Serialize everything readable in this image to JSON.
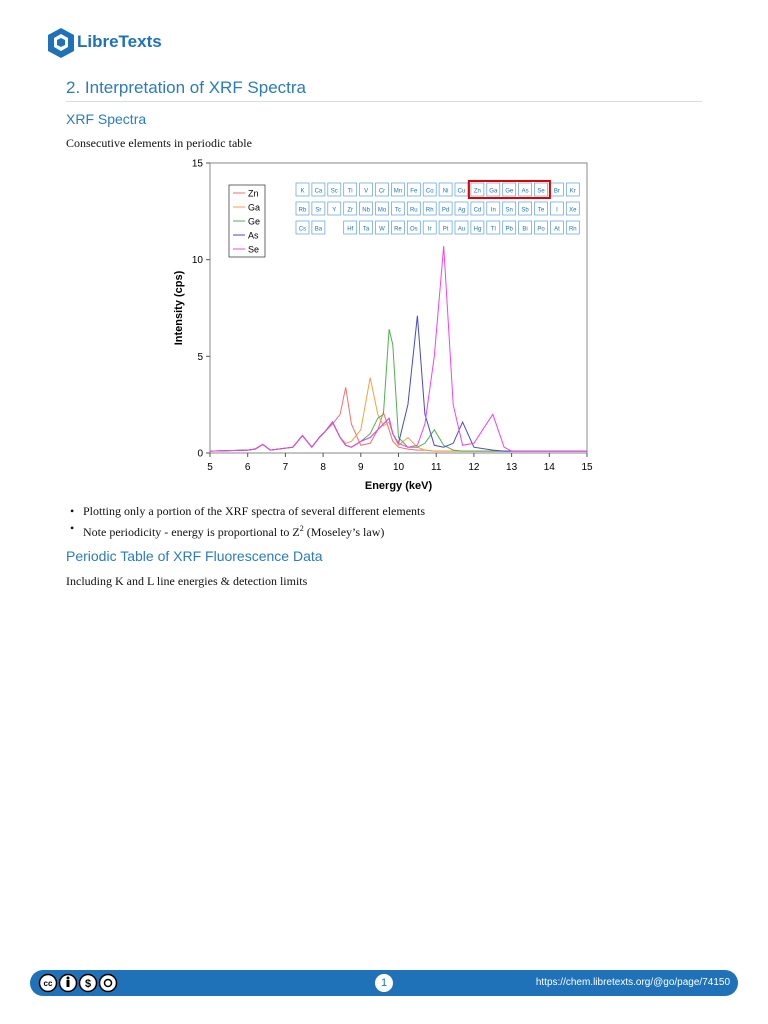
{
  "header": {
    "logo": "LibreTexts"
  },
  "title": "2. Interpretation of XRF Spectra",
  "section1": {
    "heading": "XRF Spectra",
    "text": "Consecutive elements in periodic table",
    "bullets": [
      {
        "text": "Plotting only a portion of the XRF spectra of several different elements"
      },
      {
        "text": "Note periodicity - energy is proportional to Z",
        "sup": "2",
        "tail": " (Moseley’s law)"
      }
    ]
  },
  "section2": {
    "heading": "Periodic Table of XRF Fluorescence Data",
    "text": "Including K and L line energies & detection limits"
  },
  "chart_data": {
    "type": "line",
    "x_label": "Energy (keV)",
    "y_label": "Intensity (cps)",
    "xlim": [
      5,
      15
    ],
    "ylim": [
      0,
      15
    ],
    "xticks": [
      5,
      6,
      7,
      8,
      9,
      10,
      11,
      12,
      13,
      14,
      15
    ],
    "yticks": [
      0,
      5,
      10,
      15
    ],
    "x": [
      5,
      6,
      6.2,
      6.4,
      6.6,
      7.2,
      7.45,
      7.7,
      7.9,
      8.05,
      8.25,
      8.45,
      8.6,
      8.75,
      9.0,
      9.25,
      9.45,
      9.6,
      9.75,
      9.85,
      10.0,
      10.25,
      10.5,
      10.7,
      10.95,
      11.2,
      11.45,
      11.7,
      12.0,
      12.5,
      12.8,
      13,
      14,
      15
    ],
    "series": [
      {
        "name": "Zn",
        "color": "#f07070",
        "values": [
          0.1,
          0.15,
          0.2,
          0.45,
          0.15,
          0.3,
          0.9,
          0.3,
          0.8,
          1.1,
          1.5,
          2.0,
          3.4,
          1.5,
          0.4,
          0.5,
          1.2,
          2.1,
          1.2,
          0.6,
          0.3,
          0.2,
          0.15,
          0.15,
          0.1,
          0.1,
          0.1,
          0.1,
          0.1,
          0.1,
          0.1,
          0.1,
          0.1,
          0.1
        ]
      },
      {
        "name": "Ga",
        "color": "#f5a040",
        "values": [
          0.1,
          0.15,
          0.2,
          0.45,
          0.15,
          0.3,
          0.9,
          0.3,
          0.8,
          1.1,
          1.6,
          0.8,
          0.5,
          0.6,
          1.2,
          3.9,
          2.0,
          1.4,
          1.6,
          1.0,
          0.4,
          0.8,
          0.3,
          0.15,
          0.1,
          0.1,
          0.1,
          0.1,
          0.1,
          0.1,
          0.1,
          0.1,
          0.1,
          0.1
        ]
      },
      {
        "name": "Ge",
        "color": "#50b050",
        "values": [
          0.1,
          0.15,
          0.2,
          0.45,
          0.15,
          0.3,
          0.9,
          0.3,
          0.8,
          1.1,
          1.6,
          0.8,
          0.4,
          0.3,
          0.6,
          1.0,
          1.8,
          2.0,
          6.4,
          5.6,
          0.8,
          0.3,
          0.3,
          0.5,
          1.2,
          0.4,
          0.15,
          0.1,
          0.1,
          0.1,
          0.1,
          0.1,
          0.1,
          0.1
        ]
      },
      {
        "name": "As",
        "color": "#4848c8",
        "values": [
          0.1,
          0.15,
          0.2,
          0.45,
          0.15,
          0.3,
          0.9,
          0.3,
          0.8,
          1.1,
          1.6,
          0.8,
          0.4,
          0.3,
          0.6,
          0.8,
          1.2,
          1.5,
          1.8,
          1.0,
          0.5,
          2.5,
          7.1,
          2.0,
          0.4,
          0.3,
          0.5,
          1.6,
          0.3,
          0.15,
          0.1,
          0.1,
          0.1,
          0.1
        ]
      },
      {
        "name": "Se",
        "color": "#ee44ee",
        "values": [
          0.1,
          0.15,
          0.2,
          0.45,
          0.15,
          0.3,
          0.9,
          0.3,
          0.8,
          1.1,
          1.6,
          0.8,
          0.4,
          0.3,
          0.6,
          0.8,
          1.2,
          1.5,
          1.8,
          1.0,
          0.5,
          0.3,
          0.4,
          1.5,
          5.0,
          10.7,
          2.5,
          0.4,
          0.5,
          2.0,
          0.3,
          0.1,
          0.1,
          0.1
        ]
      }
    ],
    "periodic_table": [
      [
        "K",
        "Ca",
        "Sc",
        "Ti",
        "V",
        "Cr",
        "Mn",
        "Fe",
        "Co",
        "Ni",
        "Cu",
        "Zn",
        "Ga",
        "Ge",
        "As",
        "Se",
        "Br",
        "Kr"
      ],
      [
        "Rb",
        "Sr",
        "Y",
        "Zr",
        "Nb",
        "Mo",
        "Tc",
        "Ru",
        "Rh",
        "Pd",
        "Ag",
        "Cd",
        "In",
        "Sn",
        "Sb",
        "Te",
        "I",
        "Xe"
      ],
      [
        "Cs",
        "Ba",
        null,
        "Hf",
        "Ta",
        "W",
        "Re",
        "Os",
        "Ir",
        "Pt",
        "Au",
        "Hg",
        "Tl",
        "Pb",
        "Bi",
        "Po",
        "At",
        "Rn"
      ]
    ]
  },
  "footer": {
    "page": "1",
    "url": "https://chem.libretexts.org/@go/page/74150"
  }
}
